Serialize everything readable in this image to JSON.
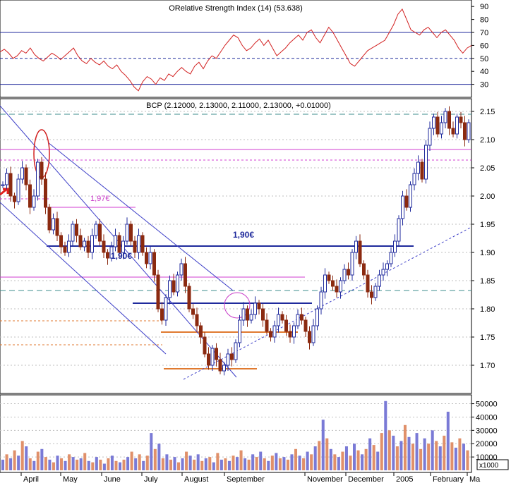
{
  "chart_data": [
    {
      "type": "line",
      "panel": "RSI",
      "title": "ORelative Strength Index (14) (53.638)",
      "y_ticks": [
        30,
        40,
        50,
        60,
        70,
        80,
        90
      ],
      "ylim": [
        20,
        95
      ],
      "reference_levels": [
        70,
        50,
        30
      ],
      "series": [
        {
          "values": [
            55,
            57,
            54,
            50,
            52,
            56,
            54,
            58,
            53,
            50,
            48,
            51,
            54,
            52,
            49,
            52,
            55,
            58,
            52,
            48,
            46,
            50,
            47,
            45,
            48,
            44,
            42,
            45,
            40,
            37,
            33,
            28,
            25,
            32,
            36,
            34,
            30,
            35,
            33,
            38,
            36,
            40,
            43,
            40,
            38,
            44,
            47,
            42,
            48,
            52,
            50,
            55,
            60,
            64,
            68,
            66,
            60,
            56,
            58,
            62,
            65,
            60,
            64,
            58,
            52,
            55,
            58,
            62,
            65,
            68,
            64,
            70,
            72,
            66,
            62,
            68,
            74,
            70,
            64,
            58,
            52,
            46,
            44,
            48,
            52,
            56,
            58,
            60,
            62,
            64,
            70,
            76,
            84,
            88,
            80,
            72,
            70,
            68,
            72,
            74,
            70,
            66,
            70,
            72,
            68,
            64,
            58,
            54,
            58,
            60
          ]
        }
      ]
    },
    {
      "type": "candlestick",
      "panel": "price",
      "title": "BCP (2.12000, 2.13000, 2.11000, 2.13000, +0.01000)",
      "x_labels": [
        "April",
        "May",
        "June",
        "July",
        "August",
        "September",
        "November",
        "December",
        "2005",
        "February",
        "Ma"
      ],
      "y_ticks": [
        "2.15",
        "2.10",
        "2.05",
        "2.00",
        "1.95",
        "1.90",
        "1.85",
        "1.80",
        "1.75",
        "1.70"
      ],
      "ylim": [
        1.645,
        2.165
      ],
      "annotations": [
        "1,97€",
        "1,90€",
        "1,90€"
      ],
      "close": [
        2.02,
        2.04,
        2.0,
        1.99,
        2.03,
        2.05,
        2.02,
        1.98,
        2.0,
        2.06,
        2.03,
        1.98,
        1.94,
        1.96,
        1.93,
        1.91,
        1.9,
        1.92,
        1.95,
        1.93,
        1.91,
        1.92,
        1.9,
        1.93,
        1.95,
        1.92,
        1.9,
        1.89,
        1.91,
        1.93,
        1.9,
        1.92,
        1.95,
        1.92,
        1.9,
        1.93,
        1.9,
        1.88,
        1.9,
        1.86,
        1.8,
        1.78,
        1.82,
        1.85,
        1.83,
        1.86,
        1.88,
        1.84,
        1.8,
        1.79,
        1.77,
        1.75,
        1.72,
        1.7,
        1.73,
        1.71,
        1.69,
        1.7,
        1.72,
        1.71,
        1.74,
        1.78,
        1.8,
        1.78,
        1.79,
        1.81,
        1.8,
        1.78,
        1.76,
        1.75,
        1.77,
        1.79,
        1.78,
        1.76,
        1.75,
        1.77,
        1.79,
        1.78,
        1.76,
        1.74,
        1.77,
        1.8,
        1.83,
        1.86,
        1.85,
        1.84,
        1.83,
        1.85,
        1.87,
        1.86,
        1.9,
        1.92,
        1.88,
        1.86,
        1.83,
        1.82,
        1.84,
        1.86,
        1.87,
        1.88,
        1.9,
        1.92,
        1.96,
        2.0,
        1.98,
        2.02,
        2.04,
        2.06,
        2.03,
        2.09,
        2.12,
        2.14,
        2.11,
        2.13,
        2.15,
        2.12,
        2.11,
        2.14,
        2.13,
        2.1,
        2.13
      ]
    },
    {
      "type": "bar",
      "panel": "volume",
      "y_ticks": [
        "50000",
        "40000",
        "30000",
        "20000",
        "10000"
      ],
      "y_unit_label": "x1000",
      "ylim": [
        0,
        54000
      ],
      "values": [
        8000,
        12000,
        9000,
        15000,
        11000,
        22000,
        18000,
        9000,
        7000,
        14000,
        16000,
        10000,
        8000,
        6000,
        11000,
        9000,
        7000,
        12000,
        10000,
        8000,
        9000,
        13000,
        7000,
        6000,
        10000,
        8000,
        5000,
        9000,
        11000,
        7000,
        6000,
        8000,
        10000,
        14000,
        9000,
        12000,
        7000,
        11000,
        28000,
        16000,
        20000,
        9000,
        12000,
        8000,
        10000,
        6000,
        9000,
        14000,
        11000,
        8000,
        12000,
        7000,
        9000,
        10000,
        6000,
        13000,
        8000,
        9000,
        7000,
        11000,
        10000,
        15000,
        9000,
        8000,
        12000,
        10000,
        14000,
        9000,
        7000,
        11000,
        13000,
        9000,
        10000,
        8000,
        12000,
        16000,
        11000,
        9000,
        14000,
        12000,
        18000,
        22000,
        38000,
        24000,
        16000,
        12000,
        10000,
        14000,
        18000,
        11000,
        20000,
        15000,
        12000,
        16000,
        24000,
        19000,
        14000,
        28000,
        52000,
        30000,
        26000,
        18000,
        22000,
        34000,
        25000,
        20000,
        28000,
        16000,
        24000,
        20000,
        30000,
        22000,
        18000,
        26000,
        44000,
        21000,
        17000,
        24000,
        20000,
        15000
      ]
    }
  ]
}
